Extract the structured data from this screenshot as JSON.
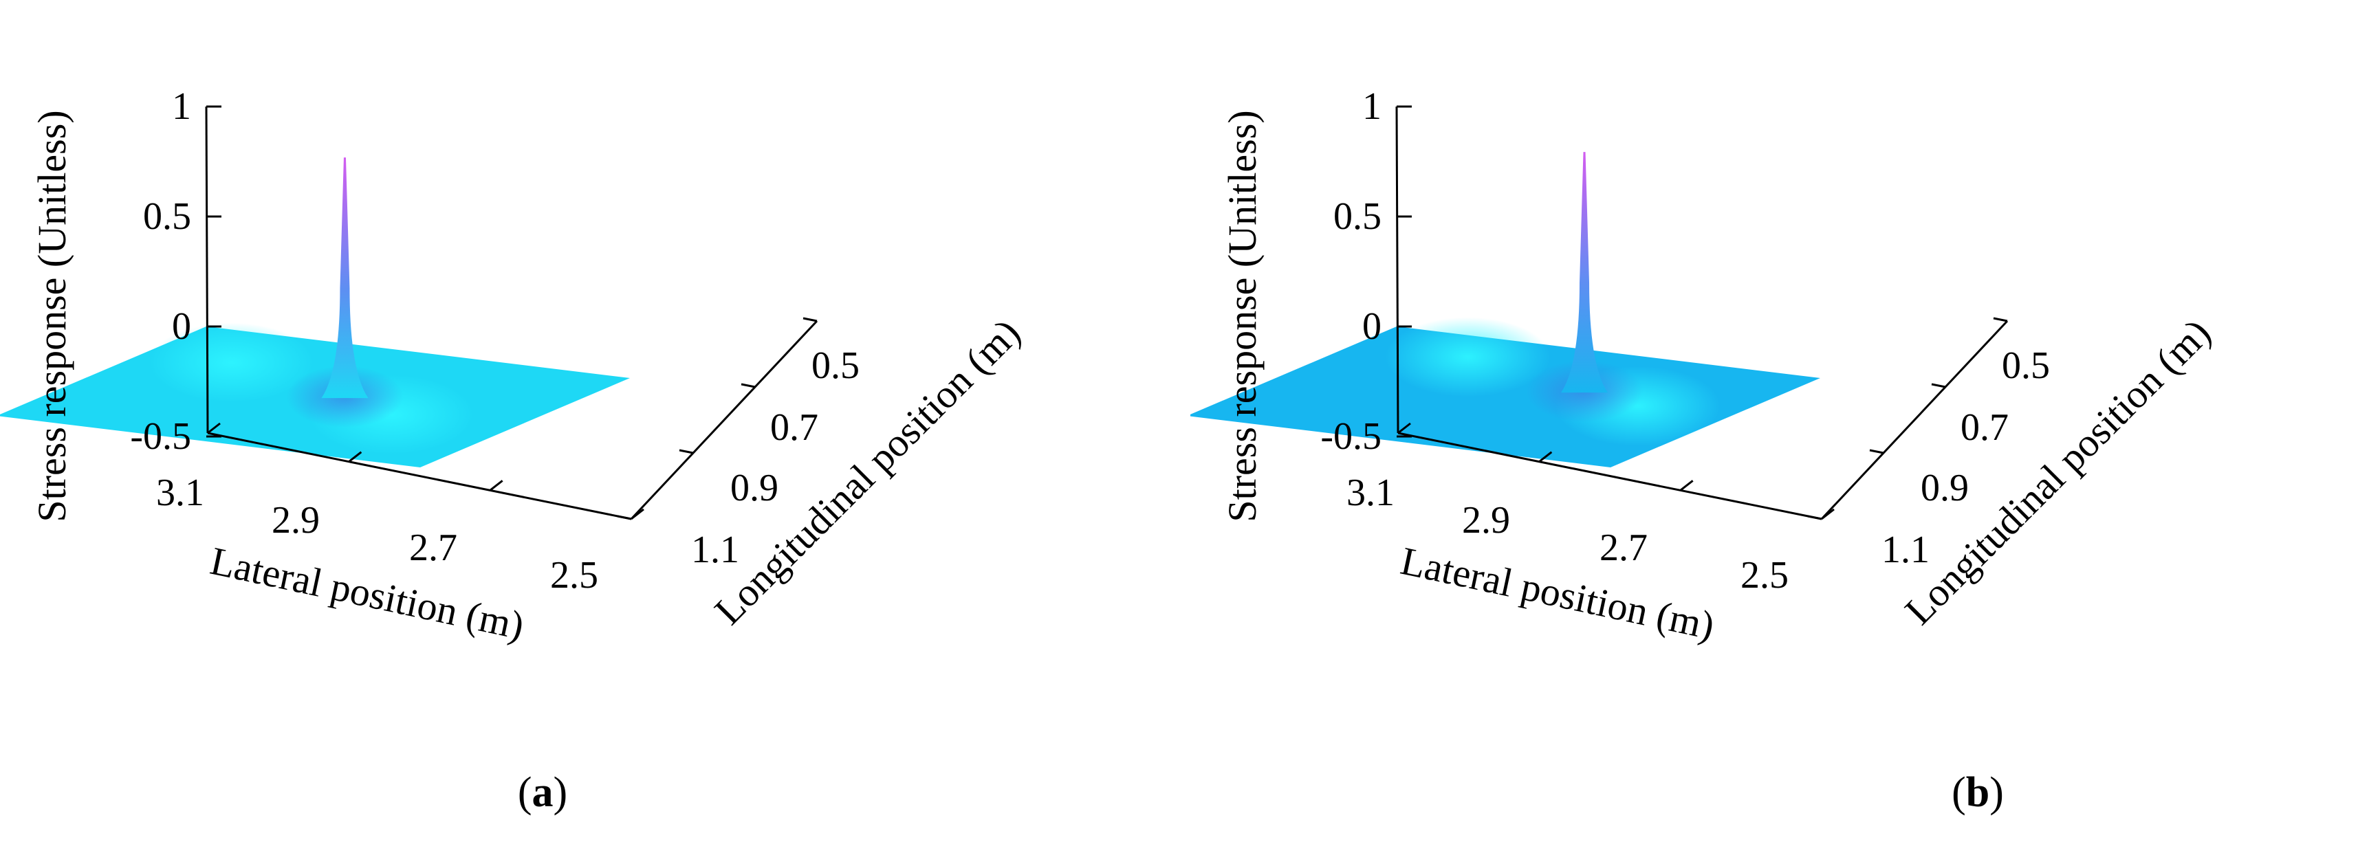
{
  "chart_data": [
    {
      "type": "surface",
      "panel_label": "a",
      "xlabel": "Lateral position (m)",
      "ylabel": "Longitudinal position (m)",
      "zlabel": "Stress response (Unitless)",
      "x_ticks": [
        "3.1",
        "2.9",
        "2.7",
        "2.5"
      ],
      "y_ticks": [
        "0.5",
        "0.7",
        "0.9",
        "1.1"
      ],
      "z_ticks": [
        "1",
        "0.5",
        "0",
        "-0.5"
      ],
      "xlim": [
        2.5,
        3.1
      ],
      "ylim": [
        0.5,
        1.1
      ],
      "zlim": [
        -0.5,
        1
      ],
      "grid": false,
      "surface_color": "#1ed8f5",
      "peak_color": "#d25cf0",
      "peak": {
        "x": 2.78,
        "y": 0.75,
        "z": 1.0
      },
      "side_lobes": [
        {
          "x": 2.95,
          "y": 0.73,
          "z": 0.05
        },
        {
          "x": 2.64,
          "y": 0.9,
          "z": 0.05
        }
      ]
    },
    {
      "type": "surface",
      "panel_label": "b",
      "xlabel": "Lateral position (m)",
      "ylabel": "Longitudinal position (m)",
      "zlabel": "Stress response (Unitless)",
      "x_ticks": [
        "3.1",
        "2.9",
        "2.7",
        "2.5"
      ],
      "y_ticks": [
        "0.5",
        "0.7",
        "0.9",
        "1.1"
      ],
      "z_ticks": [
        "1",
        "0.5",
        "0",
        "-0.5"
      ],
      "xlim": [
        2.5,
        3.1
      ],
      "ylim": [
        0.5,
        1.1
      ],
      "zlim": [
        -0.5,
        1
      ],
      "grid": false,
      "surface_color": "#17b6f0",
      "peak_color": "#d25cf0",
      "peak": {
        "x": 2.74,
        "y": 0.69,
        "z": 1.0
      },
      "side_lobes": [
        {
          "x": 2.92,
          "y": 0.66,
          "z": 0.04
        },
        {
          "x": 2.6,
          "y": 0.82,
          "z": 0.05
        }
      ]
    }
  ]
}
